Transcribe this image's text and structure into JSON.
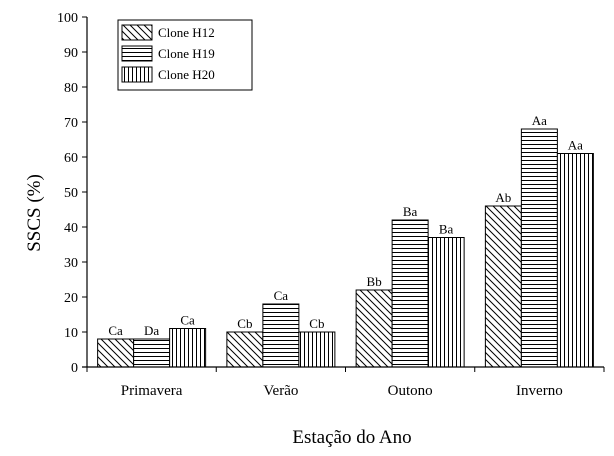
{
  "chart_data": {
    "type": "bar",
    "xlabel": "Estação do Ano",
    "ylabel": "SSCS (%)",
    "ylim": [
      0,
      100
    ],
    "yticks": [
      0,
      10,
      20,
      30,
      40,
      50,
      60,
      70,
      80,
      90,
      100
    ],
    "grid": false,
    "legend_position": "top-left",
    "categories": [
      "Primavera",
      "Verão",
      "Outono",
      "Inverno"
    ],
    "series": [
      {
        "name": "Clone H12",
        "pattern": "diagonal",
        "values": [
          8,
          10,
          22,
          46
        ],
        "labels": [
          "Ca",
          "Cb",
          "Bb",
          "Ab"
        ]
      },
      {
        "name": "Clone H19",
        "pattern": "horizontal",
        "values": [
          8,
          18,
          42,
          68
        ],
        "labels": [
          "Da",
          "Ca",
          "Ba",
          "Aa"
        ]
      },
      {
        "name": "Clone H20",
        "pattern": "vertical",
        "values": [
          11,
          10,
          37,
          61
        ],
        "labels": [
          "Ca",
          "Cb",
          "Ba",
          "Aa"
        ]
      }
    ]
  }
}
